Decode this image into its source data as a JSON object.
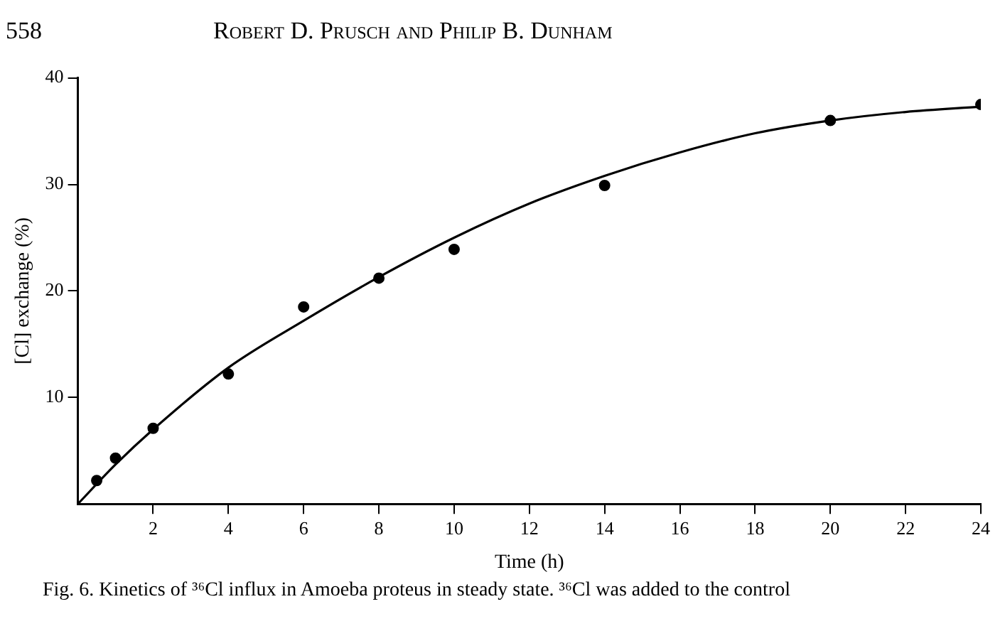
{
  "chart_data": {
    "type": "scatter",
    "xlabel": "Time (h)",
    "ylabel": "[Cl] exchange (%)",
    "annotations": [
      "558",
      "Robert D. Prusch and Philip B. Dunham",
      "Fig. 6. Kinetics of ³⁶Cl influx in Amoeba proteus in steady state. ³⁶Cl was added to the control"
    ],
    "series": [
      {
        "color": "#000000",
        "marker": "circle",
        "x": [
          0.5,
          1,
          2,
          4,
          6,
          8,
          10,
          14,
          20,
          24
        ],
        "values": [
          2.2,
          4.3,
          7.1,
          12.2,
          18.5,
          21.2,
          23.9,
          29.9,
          36,
          37.5
        ]
      },
      {
        "type": "line",
        "color": "#000000",
        "marker": "none",
        "line_style": "solid",
        "x": [
          0,
          1,
          2,
          4,
          6,
          8,
          10,
          12,
          14,
          16,
          18,
          20,
          22,
          24
        ],
        "values": [
          0,
          3.7,
          7,
          12.8,
          17.2,
          21.3,
          25,
          28.2,
          30.8,
          33,
          34.8,
          36,
          36.8,
          37.3
        ]
      }
    ],
    "xlim": [
      0,
      24
    ],
    "xticks": [
      2,
      4,
      6,
      8,
      10,
      12,
      14,
      16,
      18,
      20,
      22,
      24
    ],
    "ylim": [
      0,
      40
    ],
    "yticks": [
      10,
      20,
      30,
      40
    ],
    "grid": false,
    "legend": false
  }
}
